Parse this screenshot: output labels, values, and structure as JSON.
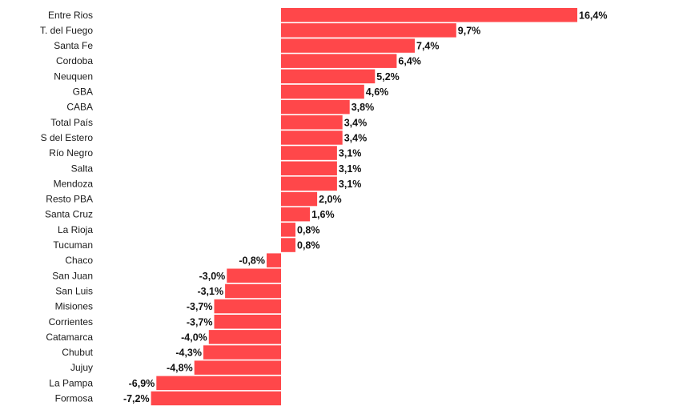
{
  "chart_data": {
    "type": "bar",
    "orientation": "horizontal",
    "title": "",
    "xlabel": "",
    "ylabel": "",
    "grid": false,
    "legend": "none",
    "bar_color": "#FF474A",
    "xlim": [
      -7.2,
      16.4
    ],
    "categories": [
      "Entre Rios",
      "T. del Fuego",
      "Santa Fe",
      "Cordoba",
      "Neuquen",
      "GBA",
      "CABA",
      "Total País",
      "S del Estero",
      "Río Negro",
      "Salta",
      "Mendoza",
      "Resto PBA",
      "Santa Cruz",
      "La Rioja",
      "Tucuman",
      "Chaco",
      "San Juan",
      "San Luis",
      "Misiones",
      "Corrientes",
      "Catamarca",
      "Chubut",
      "Jujuy",
      "La Pampa",
      "Formosa"
    ],
    "values": [
      16.4,
      9.7,
      7.4,
      6.4,
      5.2,
      4.6,
      3.8,
      3.4,
      3.4,
      3.1,
      3.1,
      3.1,
      2.0,
      1.6,
      0.8,
      0.8,
      -0.8,
      -3.0,
      -3.1,
      -3.7,
      -3.7,
      -4.0,
      -4.3,
      -4.8,
      -6.9,
      -7.2
    ],
    "value_labels": [
      "16,4%",
      "9,7%",
      "7,4%",
      "6,4%",
      "5,2%",
      "4,6%",
      "3,8%",
      "3,4%",
      "3,4%",
      "3,1%",
      "3,1%",
      "3,1%",
      "2,0%",
      "1,6%",
      "0,8%",
      "0,8%",
      "-0,8%",
      "-3,0%",
      "-3,1%",
      "-3,7%",
      "-3,7%",
      "-4,0%",
      "-4,3%",
      "-4,8%",
      "-6,9%",
      "-7,2%"
    ]
  }
}
